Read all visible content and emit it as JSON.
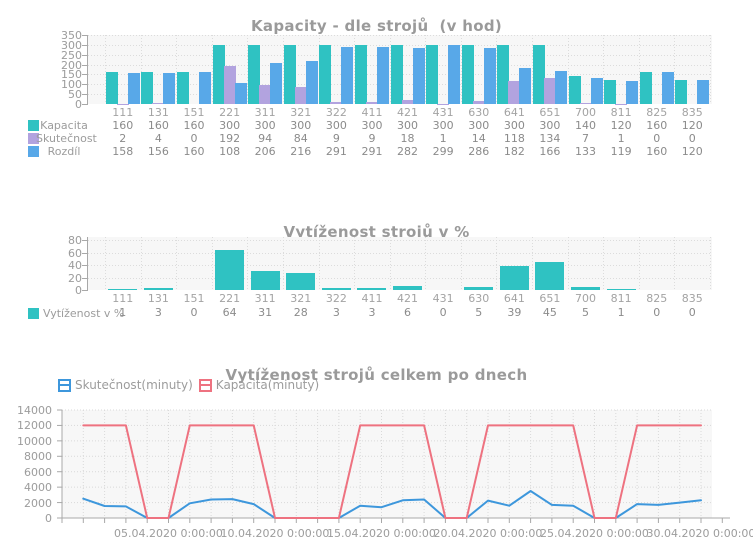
{
  "chart_data": [
    {
      "type": "bar",
      "title": "Kapacity - dle strojů  (v hod)",
      "categories": [
        "111",
        "131",
        "151",
        "221",
        "311",
        "321",
        "322",
        "411",
        "421",
        "431",
        "630",
        "641",
        "651",
        "700",
        "811",
        "825",
        "835"
      ],
      "y_ticks": [
        "350",
        "300",
        "250",
        "200",
        "150",
        "100",
        "50",
        "0"
      ],
      "ylim": [
        0,
        350
      ],
      "grid": "dotted",
      "legend_position": "left-table",
      "series": [
        {
          "name": "Kapacita",
          "color": "#2FC2C2",
          "values": [
            160,
            160,
            160,
            300,
            300,
            300,
            300,
            300,
            300,
            300,
            300,
            300,
            300,
            140,
            120,
            160,
            120
          ]
        },
        {
          "name": "Skutečnost",
          "color": "#B2A3DF",
          "values": [
            2,
            4,
            0,
            192,
            94,
            84,
            9,
            9,
            18,
            1,
            14,
            118,
            134,
            7,
            1,
            0,
            0
          ]
        },
        {
          "name": "Rozdíl",
          "color": "#58A8E8",
          "values": [
            158,
            156,
            160,
            108,
            206,
            216,
            291,
            291,
            282,
            299,
            286,
            182,
            166,
            133,
            119,
            160,
            120
          ]
        }
      ]
    },
    {
      "type": "bar",
      "title": "Vytíženost strojů v %",
      "categories": [
        "111",
        "131",
        "151",
        "221",
        "311",
        "321",
        "322",
        "411",
        "421",
        "431",
        "630",
        "641",
        "651",
        "700",
        "811",
        "825",
        "835"
      ],
      "y_ticks": [
        "80",
        "60",
        "40",
        "20",
        "0"
      ],
      "ylim": [
        0,
        80
      ],
      "grid": "dotted",
      "legend_position": "left-table",
      "series": [
        {
          "name": "Vytíženost v %",
          "color": "#2FC2C2",
          "values": [
            1,
            3,
            0,
            64,
            31,
            28,
            3,
            3,
            6,
            0,
            5,
            39,
            45,
            5,
            1,
            0,
            0
          ]
        }
      ]
    },
    {
      "type": "line",
      "title": "Vytíženost strojů celkem po dnech",
      "y_ticks": [
        "14000",
        "12000",
        "10000",
        "8000",
        "6000",
        "4000",
        "2000",
        "0"
      ],
      "ylim": [
        0,
        14000
      ],
      "grid": "dotted",
      "legend_position": "top-left",
      "x_label_days": [
        5,
        10,
        15,
        20,
        25,
        30
      ],
      "x_tick_labels": [
        "05.04.2020 0:00:00",
        "10.04.2020 0:00:00",
        "15.04.2020 0:00:00",
        "20.04.2020 0:00:00",
        "25.04.2020 0:00:00",
        "30.04.2020 0:00:00"
      ],
      "x_days": [
        1,
        2,
        3,
        4,
        5,
        6,
        7,
        8,
        9,
        10,
        11,
        12,
        13,
        14,
        15,
        16,
        17,
        18,
        19,
        20,
        21,
        22,
        23,
        24,
        25,
        26,
        27,
        28,
        29,
        30
      ],
      "series": [
        {
          "name": "Skutečnost(minuty)",
          "color": "#3D97DC",
          "values": [
            2500,
            1550,
            1500,
            0,
            0,
            1900,
            2400,
            2450,
            1800,
            0,
            0,
            0,
            0,
            1600,
            1400,
            2300,
            2400,
            0,
            0,
            2250,
            1600,
            3500,
            1700,
            1600,
            0,
            0,
            1800,
            1700,
            2000,
            2300
          ]
        },
        {
          "name": "Kapacita(minuty)",
          "color": "#EE7280",
          "values": [
            12000,
            12000,
            12000,
            0,
            0,
            12000,
            12000,
            12000,
            12000,
            0,
            0,
            0,
            0,
            12000,
            12000,
            12000,
            12000,
            0,
            0,
            12000,
            12000,
            12000,
            12000,
            12000,
            0,
            0,
            12000,
            12000,
            12000,
            12000
          ]
        }
      ]
    }
  ]
}
